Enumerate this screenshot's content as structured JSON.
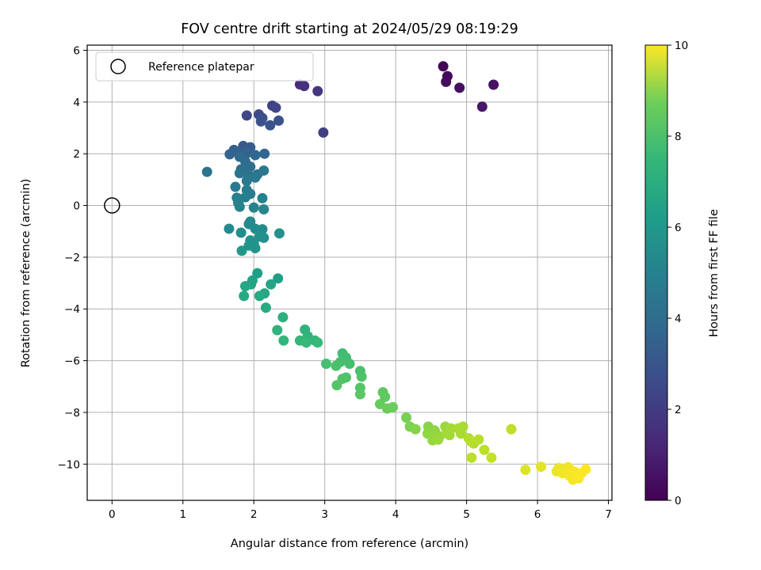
{
  "chart_data": {
    "type": "scatter",
    "title": "FOV centre drift starting at 2024/05/29 08:19:29",
    "xlabel": "Angular distance from reference (arcmin)",
    "ylabel": "Rotation from reference (arcmin)",
    "xlim": [
      -0.35,
      7.05
    ],
    "ylim": [
      -11.4,
      6.2
    ],
    "xticks": [
      0,
      1,
      2,
      3,
      4,
      5,
      6,
      7
    ],
    "yticks": [
      -10,
      -8,
      -6,
      -4,
      -2,
      0,
      2,
      4,
      6
    ],
    "xtick_labels": [
      "0",
      "1",
      "2",
      "3",
      "4",
      "5",
      "6",
      "7"
    ],
    "ytick_labels": [
      "−10",
      "−8",
      "−6",
      "−4",
      "−2",
      "0",
      "2",
      "4",
      "6"
    ],
    "grid": true,
    "colormap": "viridis",
    "colorbar": {
      "label": "Hours from first FF file",
      "range": [
        0,
        10
      ],
      "ticks": [
        0,
        2,
        4,
        6,
        8,
        10
      ],
      "tick_labels": [
        "0",
        "2",
        "4",
        "6",
        "8",
        "10"
      ]
    },
    "legend": {
      "position": "top-left",
      "entries": [
        "Reference platepar"
      ]
    },
    "reference_point": {
      "x": 0,
      "y": 0,
      "label": "Reference platepar"
    },
    "points": [
      {
        "x": 4.67,
        "y": 5.38,
        "c": 0.1
      },
      {
        "x": 4.73,
        "y": 5.0,
        "c": 0.2
      },
      {
        "x": 4.71,
        "y": 4.78,
        "c": 0.3
      },
      {
        "x": 4.9,
        "y": 4.55,
        "c": 0.45
      },
      {
        "x": 5.38,
        "y": 4.67,
        "c": 0.5
      },
      {
        "x": 5.22,
        "y": 3.82,
        "c": 0.6
      },
      {
        "x": 2.65,
        "y": 4.68,
        "c": 1.3
      },
      {
        "x": 2.71,
        "y": 4.62,
        "c": 1.4
      },
      {
        "x": 2.9,
        "y": 4.42,
        "c": 1.6
      },
      {
        "x": 2.98,
        "y": 2.82,
        "c": 1.9
      },
      {
        "x": 2.26,
        "y": 3.86,
        "c": 2.0
      },
      {
        "x": 2.31,
        "y": 3.78,
        "c": 2.1
      },
      {
        "x": 1.9,
        "y": 3.48,
        "c": 2.2
      },
      {
        "x": 2.07,
        "y": 3.52,
        "c": 2.3
      },
      {
        "x": 2.12,
        "y": 3.38,
        "c": 2.4
      },
      {
        "x": 2.35,
        "y": 3.28,
        "c": 2.5
      },
      {
        "x": 2.1,
        "y": 3.25,
        "c": 2.5
      },
      {
        "x": 2.23,
        "y": 3.1,
        "c": 2.6
      },
      {
        "x": 1.85,
        "y": 2.3,
        "c": 2.8
      },
      {
        "x": 1.95,
        "y": 2.25,
        "c": 2.9
      },
      {
        "x": 1.72,
        "y": 2.15,
        "c": 3.0
      },
      {
        "x": 1.78,
        "y": 2.05,
        "c": 3.1
      },
      {
        "x": 1.66,
        "y": 1.98,
        "c": 3.2
      },
      {
        "x": 1.9,
        "y": 2.02,
        "c": 3.2
      },
      {
        "x": 2.02,
        "y": 1.95,
        "c": 3.3
      },
      {
        "x": 2.15,
        "y": 2.0,
        "c": 3.3
      },
      {
        "x": 1.8,
        "y": 1.88,
        "c": 3.4
      },
      {
        "x": 1.88,
        "y": 1.7,
        "c": 3.5
      },
      {
        "x": 1.95,
        "y": 1.5,
        "c": 3.6
      },
      {
        "x": 1.82,
        "y": 1.4,
        "c": 3.7
      },
      {
        "x": 1.34,
        "y": 1.3,
        "c": 3.8
      },
      {
        "x": 1.8,
        "y": 1.25,
        "c": 3.8
      },
      {
        "x": 1.92,
        "y": 1.2,
        "c": 3.9
      },
      {
        "x": 2.05,
        "y": 1.2,
        "c": 3.9
      },
      {
        "x": 2.14,
        "y": 1.35,
        "c": 4.0
      },
      {
        "x": 2.02,
        "y": 1.08,
        "c": 4.0
      },
      {
        "x": 1.9,
        "y": 0.95,
        "c": 4.1
      },
      {
        "x": 1.74,
        "y": 0.72,
        "c": 4.1
      },
      {
        "x": 1.9,
        "y": 0.6,
        "c": 4.2
      },
      {
        "x": 1.95,
        "y": 0.45,
        "c": 4.2
      },
      {
        "x": 1.76,
        "y": 0.3,
        "c": 4.3
      },
      {
        "x": 1.88,
        "y": 0.32,
        "c": 4.3
      },
      {
        "x": 2.12,
        "y": 0.28,
        "c": 4.4
      },
      {
        "x": 1.78,
        "y": 0.1,
        "c": 4.4
      },
      {
        "x": 1.8,
        "y": -0.05,
        "c": 4.5
      },
      {
        "x": 2.0,
        "y": -0.08,
        "c": 4.5
      },
      {
        "x": 2.14,
        "y": -0.15,
        "c": 4.6
      },
      {
        "x": 1.95,
        "y": -0.62,
        "c": 4.7
      },
      {
        "x": 1.93,
        "y": -0.72,
        "c": 4.7
      },
      {
        "x": 1.65,
        "y": -0.9,
        "c": 4.8
      },
      {
        "x": 2.02,
        "y": -0.9,
        "c": 4.8
      },
      {
        "x": 2.12,
        "y": -0.92,
        "c": 4.9
      },
      {
        "x": 1.82,
        "y": -1.05,
        "c": 4.9
      },
      {
        "x": 2.36,
        "y": -1.08,
        "c": 5.0
      },
      {
        "x": 2.08,
        "y": -1.2,
        "c": 5.0
      },
      {
        "x": 2.14,
        "y": -1.25,
        "c": 5.0
      },
      {
        "x": 1.95,
        "y": -1.35,
        "c": 5.1
      },
      {
        "x": 2.0,
        "y": -1.48,
        "c": 5.1
      },
      {
        "x": 1.93,
        "y": -1.55,
        "c": 5.2
      },
      {
        "x": 2.02,
        "y": -1.65,
        "c": 5.2
      },
      {
        "x": 1.83,
        "y": -1.75,
        "c": 5.3
      },
      {
        "x": 2.05,
        "y": -2.62,
        "c": 5.6
      },
      {
        "x": 2.34,
        "y": -2.82,
        "c": 5.6
      },
      {
        "x": 1.98,
        "y": -2.9,
        "c": 5.7
      },
      {
        "x": 2.24,
        "y": -3.05,
        "c": 5.8
      },
      {
        "x": 1.96,
        "y": -3.05,
        "c": 5.8
      },
      {
        "x": 1.88,
        "y": -3.12,
        "c": 5.9
      },
      {
        "x": 2.15,
        "y": -3.4,
        "c": 5.9
      },
      {
        "x": 2.08,
        "y": -3.5,
        "c": 6.0
      },
      {
        "x": 1.86,
        "y": -3.5,
        "c": 6.0
      },
      {
        "x": 2.17,
        "y": -3.95,
        "c": 6.1
      },
      {
        "x": 2.41,
        "y": -4.32,
        "c": 6.3
      },
      {
        "x": 2.72,
        "y": -4.8,
        "c": 6.4
      },
      {
        "x": 2.33,
        "y": -4.82,
        "c": 6.4
      },
      {
        "x": 2.76,
        "y": -5.05,
        "c": 6.5
      },
      {
        "x": 2.86,
        "y": -5.22,
        "c": 6.6
      },
      {
        "x": 2.65,
        "y": -5.22,
        "c": 6.6
      },
      {
        "x": 2.42,
        "y": -5.22,
        "c": 6.6
      },
      {
        "x": 2.74,
        "y": -5.3,
        "c": 6.7
      },
      {
        "x": 2.9,
        "y": -5.3,
        "c": 6.7
      },
      {
        "x": 3.25,
        "y": -5.72,
        "c": 6.9
      },
      {
        "x": 3.3,
        "y": -5.88,
        "c": 6.9
      },
      {
        "x": 3.22,
        "y": -6.05,
        "c": 7.0
      },
      {
        "x": 3.35,
        "y": -6.12,
        "c": 7.0
      },
      {
        "x": 3.02,
        "y": -6.12,
        "c": 7.0
      },
      {
        "x": 3.16,
        "y": -6.2,
        "c": 7.1
      },
      {
        "x": 3.5,
        "y": -6.4,
        "c": 7.1
      },
      {
        "x": 3.52,
        "y": -6.62,
        "c": 7.2
      },
      {
        "x": 3.3,
        "y": -6.65,
        "c": 7.2
      },
      {
        "x": 3.25,
        "y": -6.7,
        "c": 7.2
      },
      {
        "x": 3.17,
        "y": -6.95,
        "c": 7.3
      },
      {
        "x": 3.5,
        "y": -7.05,
        "c": 7.3
      },
      {
        "x": 3.5,
        "y": -7.3,
        "c": 7.4
      },
      {
        "x": 3.82,
        "y": -7.22,
        "c": 7.5
      },
      {
        "x": 3.85,
        "y": -7.4,
        "c": 7.5
      },
      {
        "x": 3.78,
        "y": -7.68,
        "c": 7.6
      },
      {
        "x": 3.96,
        "y": -7.8,
        "c": 7.7
      },
      {
        "x": 3.88,
        "y": -7.85,
        "c": 7.7
      },
      {
        "x": 4.15,
        "y": -8.2,
        "c": 7.9
      },
      {
        "x": 4.2,
        "y": -8.55,
        "c": 8.0
      },
      {
        "x": 4.28,
        "y": -8.65,
        "c": 8.1
      },
      {
        "x": 4.46,
        "y": -8.55,
        "c": 8.2
      },
      {
        "x": 4.45,
        "y": -8.82,
        "c": 8.3
      },
      {
        "x": 4.55,
        "y": -8.7,
        "c": 8.3
      },
      {
        "x": 4.62,
        "y": -8.92,
        "c": 8.4
      },
      {
        "x": 4.52,
        "y": -9.08,
        "c": 8.4
      },
      {
        "x": 4.6,
        "y": -9.05,
        "c": 8.5
      },
      {
        "x": 4.7,
        "y": -8.55,
        "c": 8.5
      },
      {
        "x": 4.78,
        "y": -8.62,
        "c": 8.6
      },
      {
        "x": 4.72,
        "y": -8.8,
        "c": 8.6
      },
      {
        "x": 4.76,
        "y": -8.88,
        "c": 8.6
      },
      {
        "x": 4.88,
        "y": -8.62,
        "c": 8.7
      },
      {
        "x": 4.95,
        "y": -8.55,
        "c": 8.7
      },
      {
        "x": 4.92,
        "y": -8.82,
        "c": 8.7
      },
      {
        "x": 5.03,
        "y": -9.0,
        "c": 8.8
      },
      {
        "x": 5.1,
        "y": -9.2,
        "c": 8.8
      },
      {
        "x": 5.17,
        "y": -9.05,
        "c": 8.9
      },
      {
        "x": 5.06,
        "y": -9.12,
        "c": 8.9
      },
      {
        "x": 5.25,
        "y": -9.45,
        "c": 9.0
      },
      {
        "x": 5.07,
        "y": -9.75,
        "c": 9.0
      },
      {
        "x": 5.35,
        "y": -9.75,
        "c": 9.1
      },
      {
        "x": 5.63,
        "y": -8.65,
        "c": 9.0
      },
      {
        "x": 5.83,
        "y": -10.22,
        "c": 9.5
      },
      {
        "x": 6.05,
        "y": -10.1,
        "c": 9.6
      },
      {
        "x": 6.27,
        "y": -10.28,
        "c": 9.7
      },
      {
        "x": 6.3,
        "y": -10.15,
        "c": 9.7
      },
      {
        "x": 6.35,
        "y": -10.35,
        "c": 9.8
      },
      {
        "x": 6.43,
        "y": -10.12,
        "c": 9.8
      },
      {
        "x": 6.48,
        "y": -10.25,
        "c": 9.8
      },
      {
        "x": 6.45,
        "y": -10.45,
        "c": 9.9
      },
      {
        "x": 6.53,
        "y": -10.3,
        "c": 9.9
      },
      {
        "x": 6.5,
        "y": -10.6,
        "c": 9.9
      },
      {
        "x": 6.58,
        "y": -10.55,
        "c": 9.95
      },
      {
        "x": 6.62,
        "y": -10.35,
        "c": 9.95
      },
      {
        "x": 6.68,
        "y": -10.2,
        "c": 10.0
      }
    ]
  }
}
